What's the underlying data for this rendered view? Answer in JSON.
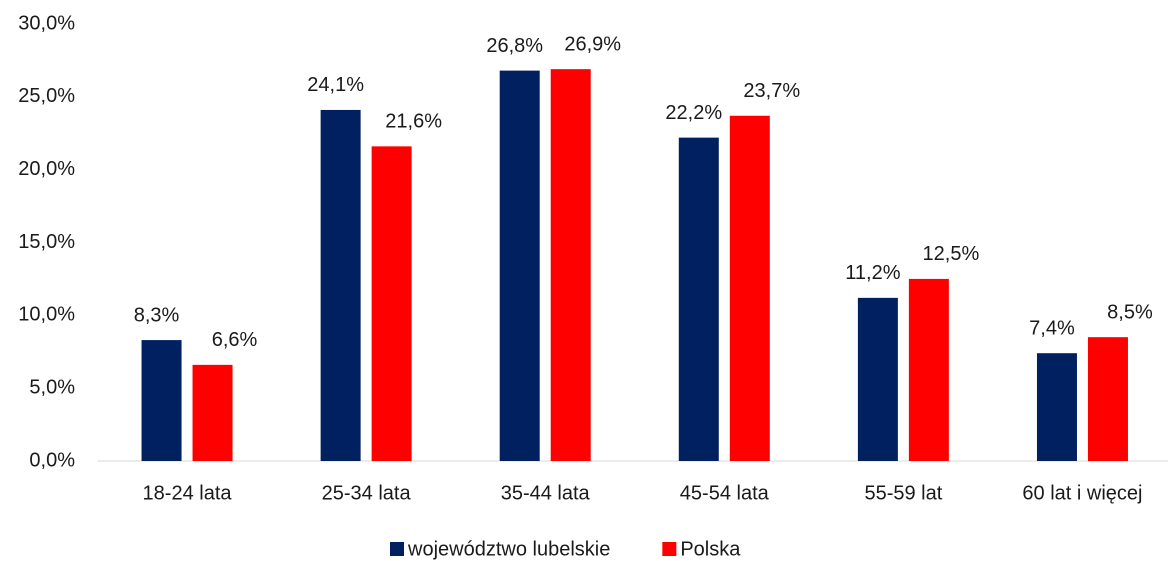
{
  "chart_data": {
    "type": "bar",
    "categories": [
      "18-24 lata",
      "25-34 lata",
      "35-44 lata",
      "45-54 lata",
      "55-59 lat",
      "60 lat i więcej"
    ],
    "series": [
      {
        "name": "województwo lubelskie",
        "color": "#002060",
        "values": [
          8.3,
          24.1,
          26.8,
          22.2,
          11.2,
          7.4
        ],
        "value_labels": [
          "8,3%",
          "24,1%",
          "26,8%",
          "22,2%",
          "11,2%",
          "7,4%"
        ]
      },
      {
        "name": "Polska",
        "color": "#ff0000",
        "values": [
          6.6,
          21.6,
          26.9,
          23.7,
          12.5,
          8.5
        ],
        "value_labels": [
          "6,6%",
          "21,6%",
          "26,9%",
          "23,7%",
          "12,5%",
          "8,5%"
        ]
      }
    ],
    "ylim": [
      0,
      30
    ],
    "yticks": [
      {
        "value": 0,
        "label": "0,0%"
      },
      {
        "value": 5,
        "label": "5,0%"
      },
      {
        "value": 10,
        "label": "10,0%"
      },
      {
        "value": 15,
        "label": "15,0%"
      },
      {
        "value": 20,
        "label": "20,0%"
      },
      {
        "value": 25,
        "label": "25,0%"
      },
      {
        "value": 30,
        "label": "30,0%"
      }
    ],
    "grid": false,
    "legend": "bottom"
  }
}
